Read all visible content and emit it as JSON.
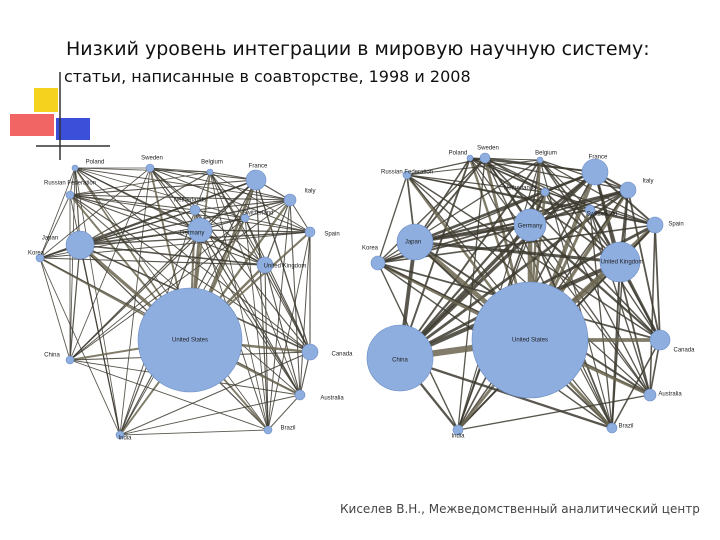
{
  "title": {
    "line1": "Низкий уровень интеграции в мировую научную систему:",
    "line2": "статьи, написанные в соавторстве, 1998 и 2008"
  },
  "networks": [
    {
      "nodes": [
        {
          "label": "Poland"
        },
        {
          "label": "Sweden"
        },
        {
          "label": "Belgium"
        },
        {
          "label": "France"
        },
        {
          "label": "Russian Federation"
        },
        {
          "label": "Italy"
        },
        {
          "label": "Netherlands"
        },
        {
          "label": "Switzerland"
        },
        {
          "label": "Germany"
        },
        {
          "label": "Spain"
        },
        {
          "label": "Japan"
        },
        {
          "label": "Korea"
        },
        {
          "label": "United Kingdom"
        },
        {
          "label": "United States"
        },
        {
          "label": "Canada"
        },
        {
          "label": "China"
        },
        {
          "label": "Australia"
        },
        {
          "label": "Brazil"
        },
        {
          "label": "India"
        }
      ]
    },
    {
      "nodes": [
        {
          "label": "Poland"
        },
        {
          "label": "Sweden"
        },
        {
          "label": "Belgium"
        },
        {
          "label": "France"
        },
        {
          "label": "Russian Federation"
        },
        {
          "label": "Italy"
        },
        {
          "label": "Netherlands"
        },
        {
          "label": "Switzerland"
        },
        {
          "label": "Germany"
        },
        {
          "label": "Spain"
        },
        {
          "label": "Japan"
        },
        {
          "label": "Korea"
        },
        {
          "label": "United Kingdom"
        },
        {
          "label": "United States"
        },
        {
          "label": "Canada"
        },
        {
          "label": "China"
        },
        {
          "label": "Australia"
        },
        {
          "label": "Brazil"
        },
        {
          "label": "India"
        }
      ]
    }
  ],
  "footer": "Киселев В.Н., Межведомственный аналитический центр"
}
